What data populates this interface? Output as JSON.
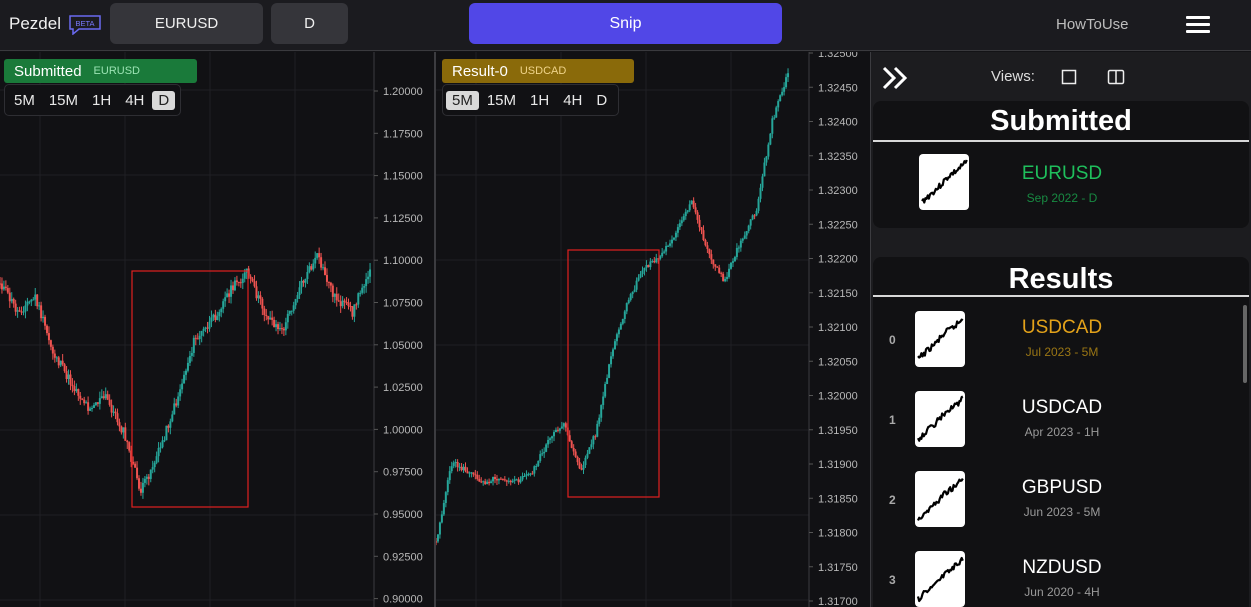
{
  "header": {
    "logo": "Pezdel",
    "beta": "BETA",
    "symbol_button": "EURUSD",
    "timeframe_button": "D",
    "snip_button": "Snip",
    "howto": "HowToUse"
  },
  "left_chart": {
    "badge": "Submitted",
    "badge_symbol": "EURUSD",
    "badge_color": "#1a7a3a",
    "timeframes": [
      "5M",
      "15M",
      "1H",
      "4H",
      "D"
    ],
    "active_timeframe": "D",
    "price_labels": [
      "1.20000",
      "1.17500",
      "1.15000",
      "1.12500",
      "1.10000",
      "1.07500",
      "1.05000",
      "1.02500",
      "1.00000",
      "0.97500",
      "0.95000",
      "0.92500",
      "0.90000"
    ]
  },
  "right_chart": {
    "badge": "Result-0",
    "badge_symbol": "USDCAD",
    "badge_color": "#8a6a0a",
    "timeframes": [
      "5M",
      "15M",
      "1H",
      "4H",
      "D"
    ],
    "active_timeframe": "5M",
    "price_labels": [
      "1.32500",
      "1.32450",
      "1.32400",
      "1.32350",
      "1.32300",
      "1.32250",
      "1.32200",
      "1.32150",
      "1.32100",
      "1.32050",
      "1.32000",
      "1.31950",
      "1.31900",
      "1.31850",
      "1.31800",
      "1.31750",
      "1.31700"
    ]
  },
  "sidebar": {
    "views_label": "Views:",
    "submitted_title": "Submitted",
    "submitted": {
      "symbol": "EURUSD",
      "date": "Sep 2022 - D",
      "color": "#1fbf5c"
    },
    "results_title": "Results",
    "results": [
      {
        "index": "0",
        "symbol": "USDCAD",
        "date": "Jul 2023 - 5M",
        "color": "#e3a21a"
      },
      {
        "index": "1",
        "symbol": "USDCAD",
        "date": "Apr 2023 - 1H",
        "color": "#ffffff"
      },
      {
        "index": "2",
        "symbol": "GBPUSD",
        "date": "Jun 2023 - 5M",
        "color": "#ffffff"
      },
      {
        "index": "3",
        "symbol": "NZDUSD",
        "date": "Jun 2020 - 4H",
        "color": "#ffffff"
      }
    ]
  },
  "colors": {
    "bull": "#26a69a",
    "bear": "#ef5350",
    "accent": "#5147e7",
    "selection": "#e02020"
  }
}
